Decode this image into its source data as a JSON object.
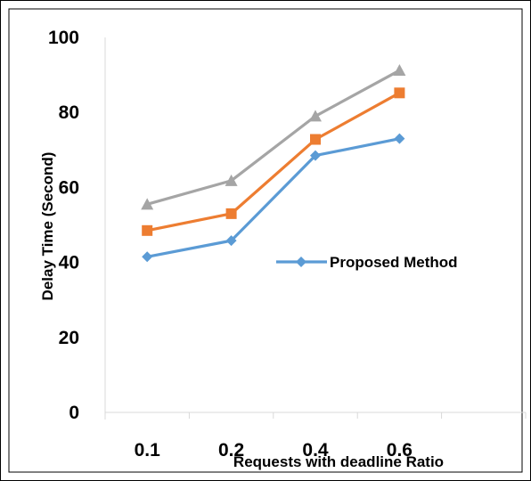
{
  "chart_data": {
    "type": "line",
    "title": "",
    "xlabel": "Requests with deadline Ratio",
    "ylabel": "Delay Time (Second)",
    "categories": [
      "0.1",
      "0.2",
      "0.4",
      "0.6"
    ],
    "ylim": [
      0,
      100
    ],
    "yticks": [
      "0",
      "20",
      "40",
      "60",
      "80",
      "100"
    ],
    "grid": false,
    "legend_position": "right",
    "series": [
      {
        "name": "Proposed Method",
        "color": "#5b9bd5",
        "marker": "diamond",
        "values": [
          41.5,
          45.8,
          68.5,
          73
        ]
      },
      {
        "name": "",
        "color": "#ed7d31",
        "marker": "square",
        "values": [
          48.5,
          53,
          72.8,
          85.2
        ]
      },
      {
        "name": "",
        "color": "#a5a5a5",
        "marker": "triangle",
        "values": [
          55.5,
          61.8,
          79,
          91.2
        ]
      }
    ]
  }
}
